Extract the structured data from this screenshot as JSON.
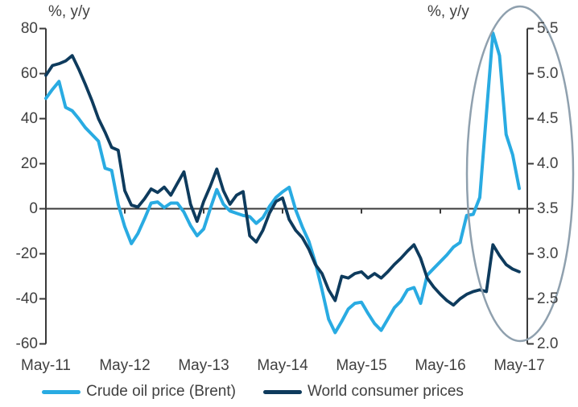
{
  "chart": {
    "left_axis_title": "%, y/y",
    "right_axis_title": "%, y/y",
    "left_ticks": [
      "80",
      "60",
      "40",
      "20",
      "0",
      "-20",
      "-40",
      "-60"
    ],
    "right_ticks": [
      "5.5",
      "5.0",
      "4.5",
      "4.0",
      "3.5",
      "3.0",
      "2.5",
      "2.0"
    ],
    "x_ticks": [
      "May-11",
      "May-12",
      "May-13",
      "May-14",
      "May-15",
      "May-16",
      "May-17"
    ]
  },
  "legend": {
    "items": [
      {
        "label": "Crude oil price (Brent)",
        "color": "#29ABE2"
      },
      {
        "label": "World consumer prices",
        "color": "#0E3B5D"
      }
    ]
  },
  "colors": {
    "crude_oil_line": "#29ABE2",
    "world_cpi_line": "#0E3B5D",
    "axis": "#3A3A3A",
    "text": "#404040",
    "highlight_ellipse": "#8FA0AE",
    "background": "#FFFFFF"
  },
  "annotation": {
    "shape": "ellipse",
    "purpose": "highlights the 2016-17 oil price spike and consumer price pickup"
  },
  "chart_data": {
    "type": "line",
    "title": "",
    "grid": false,
    "legend_position": "bottom",
    "left_ylim": [
      -60,
      80
    ],
    "right_ylim": [
      2.0,
      5.5
    ],
    "x_tick_labels": [
      "May-11",
      "May-12",
      "May-13",
      "May-14",
      "May-15",
      "May-16",
      "May-17"
    ],
    "x": [
      "May-11",
      "Jun-11",
      "Jul-11",
      "Aug-11",
      "Sep-11",
      "Oct-11",
      "Nov-11",
      "Dec-11",
      "Jan-12",
      "Feb-12",
      "Mar-12",
      "Apr-12",
      "May-12",
      "Jun-12",
      "Jul-12",
      "Aug-12",
      "Sep-12",
      "Oct-12",
      "Nov-12",
      "Dec-12",
      "Jan-13",
      "Feb-13",
      "Mar-13",
      "Apr-13",
      "May-13",
      "Jun-13",
      "Jul-13",
      "Aug-13",
      "Sep-13",
      "Oct-13",
      "Nov-13",
      "Dec-13",
      "Jan-14",
      "Feb-14",
      "Mar-14",
      "Apr-14",
      "May-14",
      "Jun-14",
      "Jul-14",
      "Aug-14",
      "Sep-14",
      "Oct-14",
      "Nov-14",
      "Dec-14",
      "Jan-15",
      "Feb-15",
      "Mar-15",
      "Apr-15",
      "May-15",
      "Jun-15",
      "Jul-15",
      "Aug-15",
      "Sep-15",
      "Oct-15",
      "Nov-15",
      "Dec-15",
      "Jan-16",
      "Feb-16",
      "Mar-16",
      "Apr-16",
      "May-16",
      "Jun-16",
      "Jul-16",
      "Aug-16",
      "Sep-16",
      "Oct-16",
      "Nov-16",
      "Dec-16",
      "Jan-17",
      "Feb-17",
      "Mar-17",
      "Apr-17",
      "May-17"
    ],
    "series": [
      {
        "name": "Crude oil price (Brent)",
        "axis": "left",
        "unit": "%, y/y",
        "color": "#29ABE2",
        "values": [
          49,
          53,
          56.5,
          45,
          43.5,
          40,
          36,
          33,
          30,
          18,
          17,
          2,
          -8,
          -15.5,
          -11,
          -4.5,
          2.5,
          3,
          0.5,
          2.5,
          2.5,
          -1.5,
          -7.5,
          -12,
          -9,
          0,
          8.5,
          2,
          -1,
          -2,
          -3,
          -3.5,
          -6.5,
          -4,
          1,
          5,
          7.5,
          9.5,
          -0.5,
          -8,
          -14.5,
          -24,
          -36,
          -49,
          -55,
          -50,
          -44.5,
          -42,
          -41.5,
          -46.5,
          -51,
          -54,
          -49,
          -44,
          -41,
          -36,
          -35,
          -42,
          -29.5,
          -26.5,
          -23.5,
          -20.5,
          -17,
          -15,
          -3,
          -2.5,
          5,
          42,
          78,
          68,
          33,
          24,
          9
        ]
      },
      {
        "name": "World consumer prices",
        "axis": "right",
        "unit": "%, y/y",
        "color": "#0E3B5D",
        "values": [
          4.98,
          5.09,
          5.11,
          5.14,
          5.2,
          5.05,
          4.88,
          4.7,
          4.5,
          4.35,
          4.18,
          4.15,
          3.7,
          3.54,
          3.52,
          3.61,
          3.72,
          3.68,
          3.74,
          3.65,
          3.78,
          3.91,
          3.55,
          3.36,
          3.58,
          3.75,
          3.94,
          3.7,
          3.55,
          3.65,
          3.69,
          3.2,
          3.13,
          3.26,
          3.45,
          3.58,
          3.62,
          3.38,
          3.26,
          3.18,
          3.05,
          2.88,
          2.78,
          2.6,
          2.48,
          2.75,
          2.73,
          2.78,
          2.8,
          2.73,
          2.78,
          2.73,
          2.8,
          2.88,
          2.95,
          3.03,
          3.1,
          2.95,
          2.73,
          2.63,
          2.55,
          2.48,
          2.43,
          2.5,
          2.55,
          2.58,
          2.6,
          2.58,
          3.1,
          2.98,
          2.88,
          2.83,
          2.8
        ]
      }
    ]
  }
}
